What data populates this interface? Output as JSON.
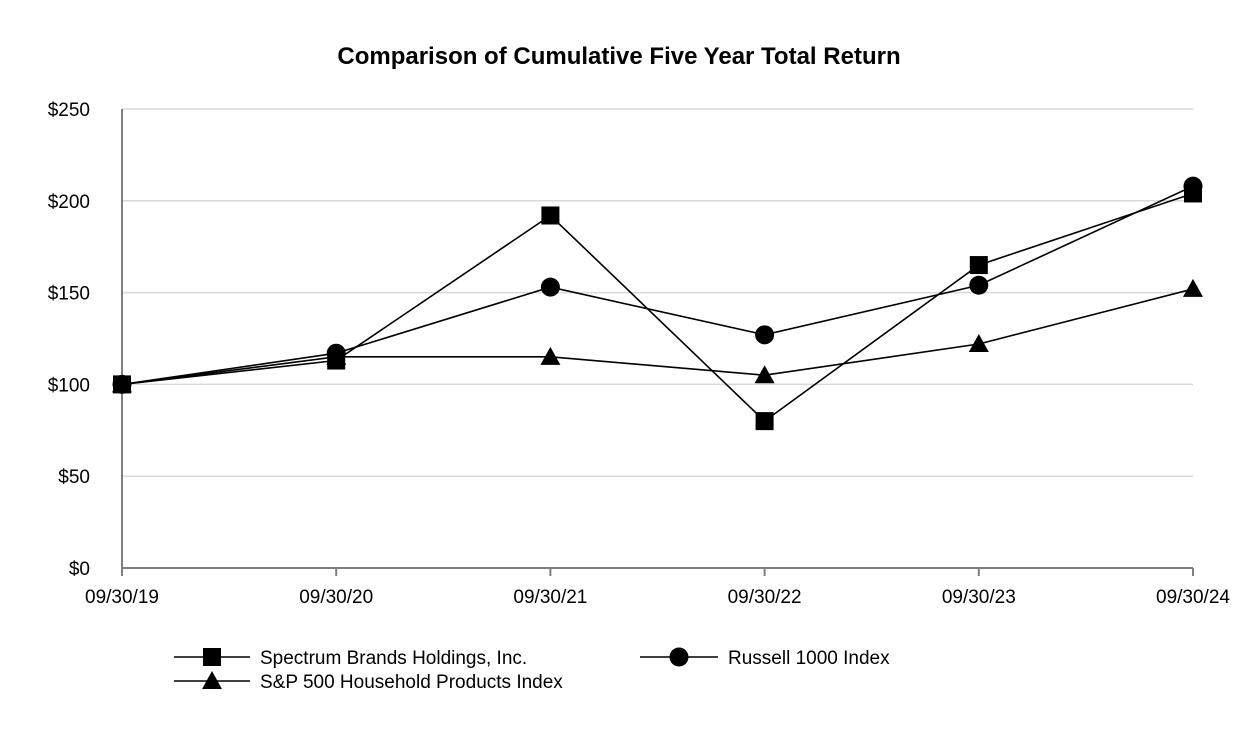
{
  "chart_data": {
    "type": "line",
    "title": "Comparison of Cumulative Five Year Total Return",
    "xlabel": "",
    "ylabel": "",
    "categories": [
      "09/30/19",
      "09/30/20",
      "09/30/21",
      "09/30/22",
      "09/30/23",
      "09/30/24"
    ],
    "y_ticks": [
      "$0",
      "$50",
      "$100",
      "$150",
      "$200",
      "$250"
    ],
    "ylim": [
      0,
      250
    ],
    "grid": true,
    "legend_position": "bottom",
    "series": [
      {
        "name": "Spectrum Brands Holdings, Inc.",
        "marker": "square",
        "values": [
          100,
          113,
          192,
          80,
          165,
          204
        ]
      },
      {
        "name": "Russell 1000 Index",
        "marker": "circle",
        "values": [
          100,
          117,
          153,
          127,
          154,
          208
        ]
      },
      {
        "name": "S&P 500 Household Products Index",
        "marker": "triangle",
        "values": [
          100,
          115,
          115,
          105,
          122,
          152
        ]
      }
    ],
    "line_color": "#000000",
    "grid_color": "#d9d9d9",
    "axis_color": "#7f7f7f"
  }
}
